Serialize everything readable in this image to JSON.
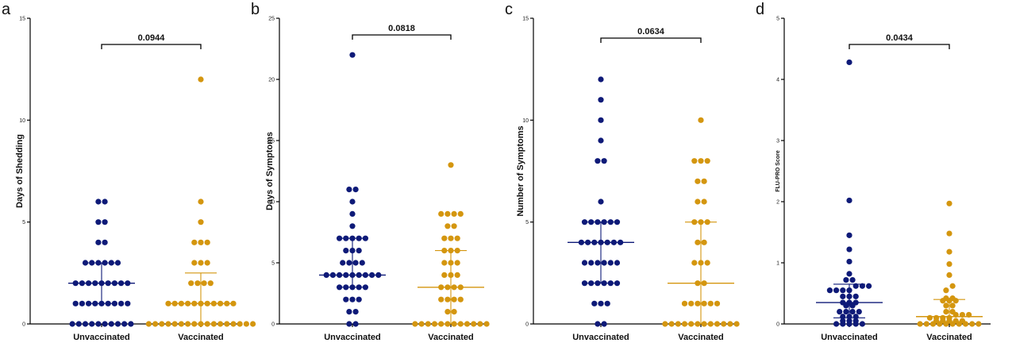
{
  "colors": {
    "unvaccinated": "#0e1a78",
    "vaccinated": "#d4960f"
  },
  "chart_data": [
    {
      "type": "scatter",
      "panel": "a",
      "ylabel": "Days of Shedding",
      "ylim": [
        0,
        15
      ],
      "yticks": [
        0,
        5,
        10,
        15
      ],
      "categories": [
        "Unvaccinated",
        "Vaccinated"
      ],
      "p_value": "0.0944",
      "series": [
        {
          "name": "Unvaccinated",
          "values": [
            0,
            0,
            0,
            0,
            0,
            0,
            0,
            0,
            0,
            0,
            1,
            1,
            1,
            1,
            1,
            1,
            1,
            1,
            1,
            2,
            2,
            2,
            2,
            2,
            2,
            2,
            2,
            2,
            3,
            3,
            3,
            3,
            3,
            3,
            4,
            4,
            5,
            5,
            6,
            6
          ],
          "median": 2,
          "q1": 1,
          "q3": 3
        },
        {
          "name": "Vaccinated",
          "values": [
            0,
            0,
            0,
            0,
            0,
            0,
            0,
            0,
            0,
            0,
            0,
            0,
            0,
            0,
            0,
            0,
            0,
            1,
            1,
            1,
            1,
            1,
            1,
            1,
            1,
            1,
            1,
            1,
            2,
            2,
            2,
            2,
            3,
            3,
            3,
            4,
            4,
            4,
            5,
            6,
            12
          ],
          "median": 1,
          "q1": 0,
          "q3": 2.5
        }
      ]
    },
    {
      "type": "scatter",
      "panel": "b",
      "ylabel": "Days of Symptoms",
      "ylim": [
        0,
        25
      ],
      "yticks": [
        0,
        5,
        10,
        15,
        20,
        25
      ],
      "categories": [
        "Unvaccinated",
        "Vaccinated"
      ],
      "p_value": "0.0818",
      "series": [
        {
          "name": "Unvaccinated",
          "values": [
            0,
            0,
            1,
            1,
            2,
            2,
            2,
            3,
            3,
            3,
            3,
            3,
            4,
            4,
            4,
            4,
            4,
            4,
            4,
            4,
            4,
            5,
            5,
            5,
            5,
            6,
            6,
            6,
            7,
            7,
            7,
            7,
            7,
            8,
            9,
            10,
            11,
            11,
            22
          ],
          "median": 4,
          "q1": 3,
          "q3": 7
        },
        {
          "name": "Vaccinated",
          "values": [
            0,
            0,
            0,
            0,
            0,
            0,
            0,
            0,
            0,
            0,
            0,
            0,
            1,
            1,
            2,
            2,
            2,
            2,
            3,
            3,
            3,
            3,
            4,
            4,
            4,
            5,
            5,
            5,
            6,
            6,
            6,
            7,
            7,
            7,
            8,
            8,
            9,
            9,
            9,
            9,
            13
          ],
          "median": 3,
          "q1": 0,
          "q3": 6
        }
      ]
    },
    {
      "type": "scatter",
      "panel": "c",
      "ylabel": "Number of Symptoms",
      "ylim": [
        0,
        15
      ],
      "yticks": [
        0,
        5,
        10,
        15
      ],
      "categories": [
        "Unvaccinated",
        "Vaccinated"
      ],
      "p_value": "0.0634",
      "series": [
        {
          "name": "Unvaccinated",
          "values": [
            0,
            0,
            1,
            1,
            1,
            2,
            2,
            2,
            2,
            2,
            2,
            3,
            3,
            3,
            3,
            3,
            3,
            4,
            4,
            4,
            4,
            4,
            4,
            4,
            5,
            5,
            5,
            5,
            5,
            5,
            6,
            8,
            8,
            9,
            10,
            11,
            12
          ],
          "median": 4,
          "q1": 2,
          "q3": 5
        },
        {
          "name": "Vaccinated",
          "values": [
            0,
            0,
            0,
            0,
            0,
            0,
            0,
            0,
            0,
            0,
            0,
            0,
            1,
            1,
            1,
            1,
            1,
            1,
            2,
            2,
            3,
            3,
            3,
            4,
            4,
            5,
            5,
            5,
            6,
            6,
            7,
            7,
            8,
            8,
            8,
            10
          ],
          "median": 2,
          "q1": 0,
          "q3": 5
        }
      ]
    },
    {
      "type": "scatter",
      "panel": "d",
      "ylabel": "FLU-PRO Score",
      "ylim": [
        0,
        5
      ],
      "yticks": [
        0,
        1,
        2,
        3,
        4,
        5
      ],
      "categories": [
        "Unvaccinated",
        "Vaccinated"
      ],
      "p_value": "0.0434",
      "series": [
        {
          "name": "Unvaccinated",
          "values": [
            0,
            0,
            0,
            0,
            0,
            0.05,
            0.05,
            0.05,
            0.12,
            0.12,
            0.12,
            0.2,
            0.2,
            0.2,
            0.2,
            0.3,
            0.3,
            0.35,
            0.35,
            0.35,
            0.45,
            0.45,
            0.45,
            0.55,
            0.55,
            0.55,
            0.55,
            0.62,
            0.62,
            0.62,
            0.72,
            0.72,
            0.82,
            1.02,
            1.22,
            1.45,
            2.02,
            4.28
          ],
          "median": 0.35,
          "q1": 0.1,
          "q3": 0.65
        },
        {
          "name": "Vaccinated",
          "values": [
            0,
            0,
            0,
            0,
            0,
            0,
            0,
            0,
            0,
            0,
            0.05,
            0.05,
            0.05,
            0.05,
            0.05,
            0.1,
            0.1,
            0.1,
            0.1,
            0.15,
            0.15,
            0.15,
            0.2,
            0.2,
            0.3,
            0.3,
            0.38,
            0.38,
            0.38,
            0.42,
            0.42,
            0.55,
            0.62,
            0.8,
            0.98,
            1.18,
            1.48,
            1.97
          ],
          "median": 0.12,
          "q1": 0.03,
          "q3": 0.4
        }
      ]
    }
  ]
}
